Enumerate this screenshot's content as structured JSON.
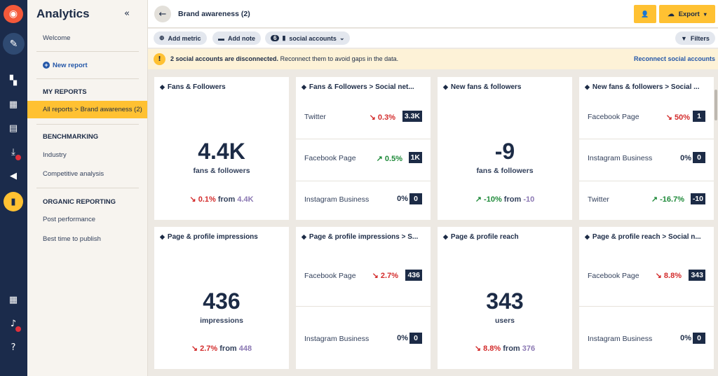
{
  "rail": {
    "icons": [
      "owl-logo-icon",
      "compose-icon",
      "streams-icon",
      "dashboard-icon",
      "calendar-icon",
      "inbox-icon",
      "megaphone-icon",
      "analytics-icon",
      "apps-icon",
      "bell-icon",
      "help-icon"
    ]
  },
  "sidebar": {
    "title": "Analytics",
    "collapse_label": "«",
    "welcome": "Welcome",
    "new_report": "New report",
    "my_reports_header": "MY REPORTS",
    "selected_report": "All reports > Brand awareness (2)",
    "benchmarking_header": "BENCHMARKING",
    "benchmarking_items": [
      "Industry",
      "Competitive analysis"
    ],
    "organic_header": "ORGANIC REPORTING",
    "organic_items": [
      "Post performance",
      "Best time to publish"
    ]
  },
  "header": {
    "back_label": "←",
    "title": "Brand awareness (2)",
    "share_label": "👤",
    "export_label": "Export"
  },
  "toolbar": {
    "add_metric": "Add metric",
    "add_note": "Add note",
    "accounts_count": "6",
    "accounts_label": "social accounts",
    "filters": "Filters"
  },
  "banner": {
    "icon": "!",
    "bold_text": "2 social accounts are disconnected.",
    "text": " Reconnect them to avoid gaps in the data.",
    "link": "Reconnect social accounts"
  },
  "cards": {
    "fans": {
      "title": "Fans & Followers",
      "value": "4.4K",
      "unit": "fans & followers",
      "change": "0.1%",
      "from_label": "from",
      "from_value": "4.4K"
    },
    "fans_net": {
      "title": "Fans & Followers > Social net...",
      "rows": [
        {
          "label": "Twitter",
          "change": "0.3%",
          "value": "3.3K"
        },
        {
          "label": "Facebook Page",
          "change": "0.5%",
          "value": "1K"
        },
        {
          "label": "Instagram Business",
          "change": "0%",
          "value": "0"
        }
      ]
    },
    "new_fans": {
      "title": "New fans & followers",
      "value": "-9",
      "unit": "fans & followers",
      "change": "-10%",
      "from_label": "from",
      "from_value": "-10"
    },
    "new_fans_net": {
      "title": "New fans & followers > Social ...",
      "rows": [
        {
          "label": "Facebook Page",
          "change": "50%",
          "value": "1"
        },
        {
          "label": "Instagram Business",
          "change": "0%",
          "value": "0"
        },
        {
          "label": "Twitter",
          "change": "-16.7%",
          "value": "-10"
        }
      ]
    },
    "impressions": {
      "title": "Page & profile impressions",
      "value": "436",
      "unit": "impressions",
      "change": "2.7%",
      "from_label": "from",
      "from_value": "448"
    },
    "impressions_net": {
      "title": "Page & profile impressions > S...",
      "rows": [
        {
          "label": "Facebook Page",
          "change": "2.7%",
          "value": "436"
        },
        {
          "label": "Instagram Business",
          "change": "0%",
          "value": "0"
        }
      ]
    },
    "reach": {
      "title": "Page & profile reach",
      "value": "343",
      "unit": "users",
      "change": "8.8%",
      "from_label": "from",
      "from_value": "376"
    },
    "reach_net": {
      "title": "Page & profile reach > Social n...",
      "rows": [
        {
          "label": "Facebook Page",
          "change": "8.8%",
          "value": "343"
        },
        {
          "label": "Instagram Business",
          "change": "0%",
          "value": "0"
        }
      ]
    }
  },
  "colors": {
    "navy": "#1b2b4b",
    "accent_yellow": "#ffc132",
    "negative": "#d32b2b",
    "positive": "#1f8a3a",
    "link_blue": "#2457a8"
  }
}
